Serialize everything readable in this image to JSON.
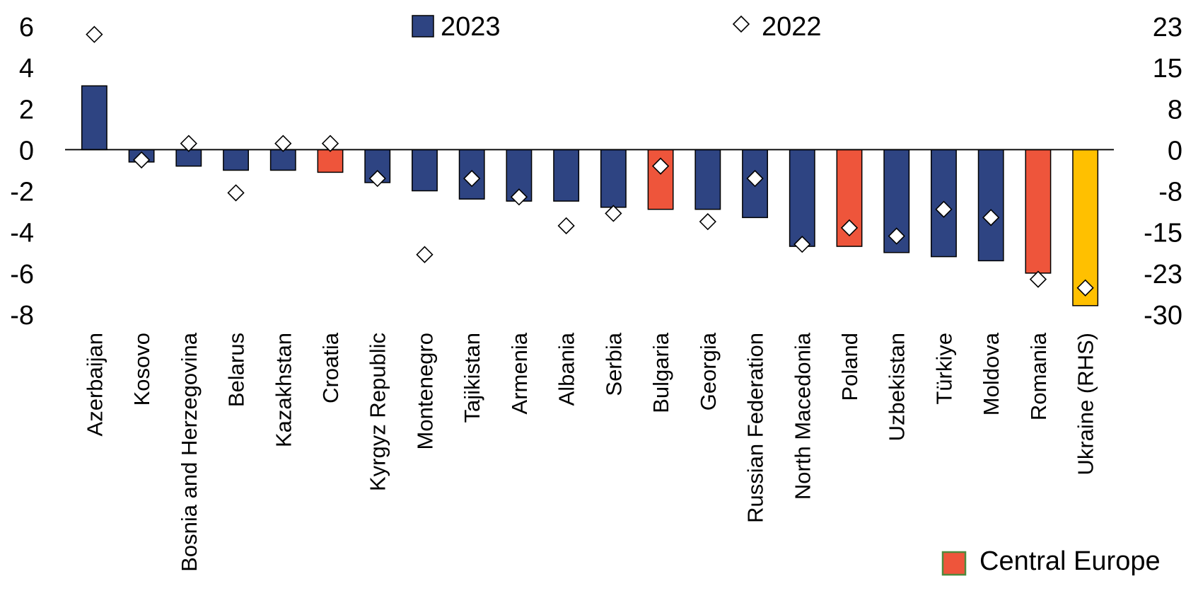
{
  "chart_data": {
    "type": "bar",
    "categories": [
      "Azerbaijan",
      "Kosovo",
      "Bosnia and Herzegovina",
      "Belarus",
      "Kazakhstan",
      "Croatia",
      "Kyrgyz Republic",
      "Montenegro",
      "Tajikistan",
      "Armenia",
      "Albania",
      "Serbia",
      "Bulgaria",
      "Georgia",
      "Russian Federation",
      "North Macedonia",
      "Poland",
      "Uzbekistan",
      "Türkiye",
      "Moldova",
      "Romania",
      "Ukraine (RHS)"
    ],
    "groups": [
      "other",
      "other",
      "other",
      "other",
      "other",
      "central",
      "other",
      "other",
      "other",
      "other",
      "other",
      "other",
      "central",
      "other",
      "other",
      "other",
      "central",
      "other",
      "other",
      "other",
      "central",
      "ukraine"
    ],
    "series": [
      {
        "name": "2023",
        "kind": "bar",
        "values": [
          3.1,
          -0.6,
          -0.8,
          -1.0,
          -1.0,
          -1.1,
          -1.6,
          -2.0,
          -2.4,
          -2.5,
          -2.5,
          -2.8,
          -2.9,
          -2.9,
          -3.3,
          -4.7,
          -4.7,
          -5.0,
          -5.2,
          -5.4,
          -6.0,
          -28.9
        ]
      },
      {
        "name": "2022",
        "kind": "marker",
        "values": [
          5.6,
          -0.5,
          0.3,
          -2.1,
          0.3,
          0.3,
          -1.4,
          -5.1,
          -1.4,
          -2.3,
          -3.7,
          -3.1,
          -0.8,
          -3.5,
          -1.4,
          -4.6,
          -3.8,
          -4.2,
          -2.9,
          -3.3,
          -6.3,
          -25.6
        ]
      }
    ],
    "y_left": {
      "ylim": [
        -8,
        6
      ],
      "ticks": [
        "6",
        "4",
        "2",
        "0",
        "-2",
        "-4",
        "-6",
        "-8"
      ]
    },
    "y_right": {
      "ylim": [
        -30.5,
        23
      ],
      "ticks": [
        "23",
        "15",
        "8",
        "0",
        "-8",
        "-15",
        "-23",
        "-30"
      ]
    },
    "legend": {
      "bar_label": "2023",
      "marker_label": "2022",
      "placement": "top"
    },
    "group_legend": {
      "label": "Central Europe",
      "placement": "bottom-right"
    },
    "colors": {
      "other": "#2E4482",
      "central": "#EE553B",
      "ukraine": "#FFC000",
      "legend_central_border": "#4E8A3E"
    },
    "grid": false
  }
}
